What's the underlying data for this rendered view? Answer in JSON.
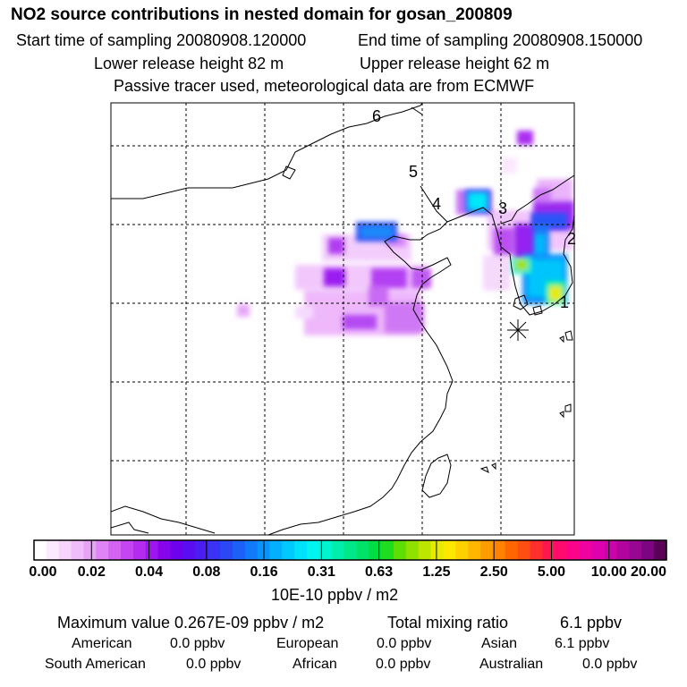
{
  "header": {
    "title": "NO2 source contributions in nested domain for gosan_200809",
    "start": "Start time of sampling 20080908.120000",
    "end": "End time of sampling 20080908.150000",
    "lower": "Lower release height   82 m",
    "upper": "Upper release height   62 m",
    "tracer": "Passive tracer used, meteorological data are from ECMWF"
  },
  "map": {
    "labels": [
      "6",
      "5",
      "4",
      "3",
      "2",
      "1"
    ],
    "receptor_icon": "asterisk-receptor-icon"
  },
  "colorbar": {
    "tick_labels": [
      "0.00",
      "0.02",
      "0.04",
      "0.08",
      "0.16",
      "0.31",
      "0.63",
      "1.25",
      "2.50",
      "5.00",
      "10.00",
      "20.00"
    ],
    "colors": [
      "#ffffff",
      "#fbeafe",
      "#f6d4fc",
      "#f0bcfa",
      "#e8a2f7",
      "#df83f5",
      "#d364f3",
      "#c545f2",
      "#b32cf0",
      "#9e15ee",
      "#8705ec",
      "#6e02ee",
      "#5a0df0",
      "#4a1ef2",
      "#3a32f4",
      "#2a48f6",
      "#1c60f8",
      "#107af9",
      "#0795fb",
      "#02b0fd",
      "#00cafd",
      "#00e2fc",
      "#00f5f0",
      "#00f4cf",
      "#00eeaa",
      "#00e78a",
      "#00e16a",
      "#00dd45",
      "#1fdc1e",
      "#5fde05",
      "#90e000",
      "#bde500",
      "#e5ea00",
      "#fbe700",
      "#ffd000",
      "#ffb600",
      "#ff9c00",
      "#ff8200",
      "#ff6500",
      "#ff4e14",
      "#ff2f2e",
      "#ff1850",
      "#ff0b70",
      "#fb048a",
      "#ef02a0",
      "#dd02ae",
      "#c904aa",
      "#b205a0",
      "#980792",
      "#7c0680",
      "#5a0056"
    ],
    "units": "10E-10 ppbv / m2"
  },
  "stats": {
    "max": "Maximum value  0.267E-09 ppbv / m2",
    "total_label": "Total mixing ratio",
    "total_value": "6.1 ppbv",
    "american_label": "American",
    "american_value": "0.0 ppbv",
    "european_label": "European",
    "european_value": "0.0 ppbv",
    "asian_label": "Asian",
    "asian_value": "6.1 ppbv",
    "south_american_label": "South American",
    "south_american_value": "0.0 ppbv",
    "african_label": "African",
    "african_value": "0.0 ppbv",
    "australian_label": "Australian",
    "australian_value": "0.0 ppbv"
  }
}
